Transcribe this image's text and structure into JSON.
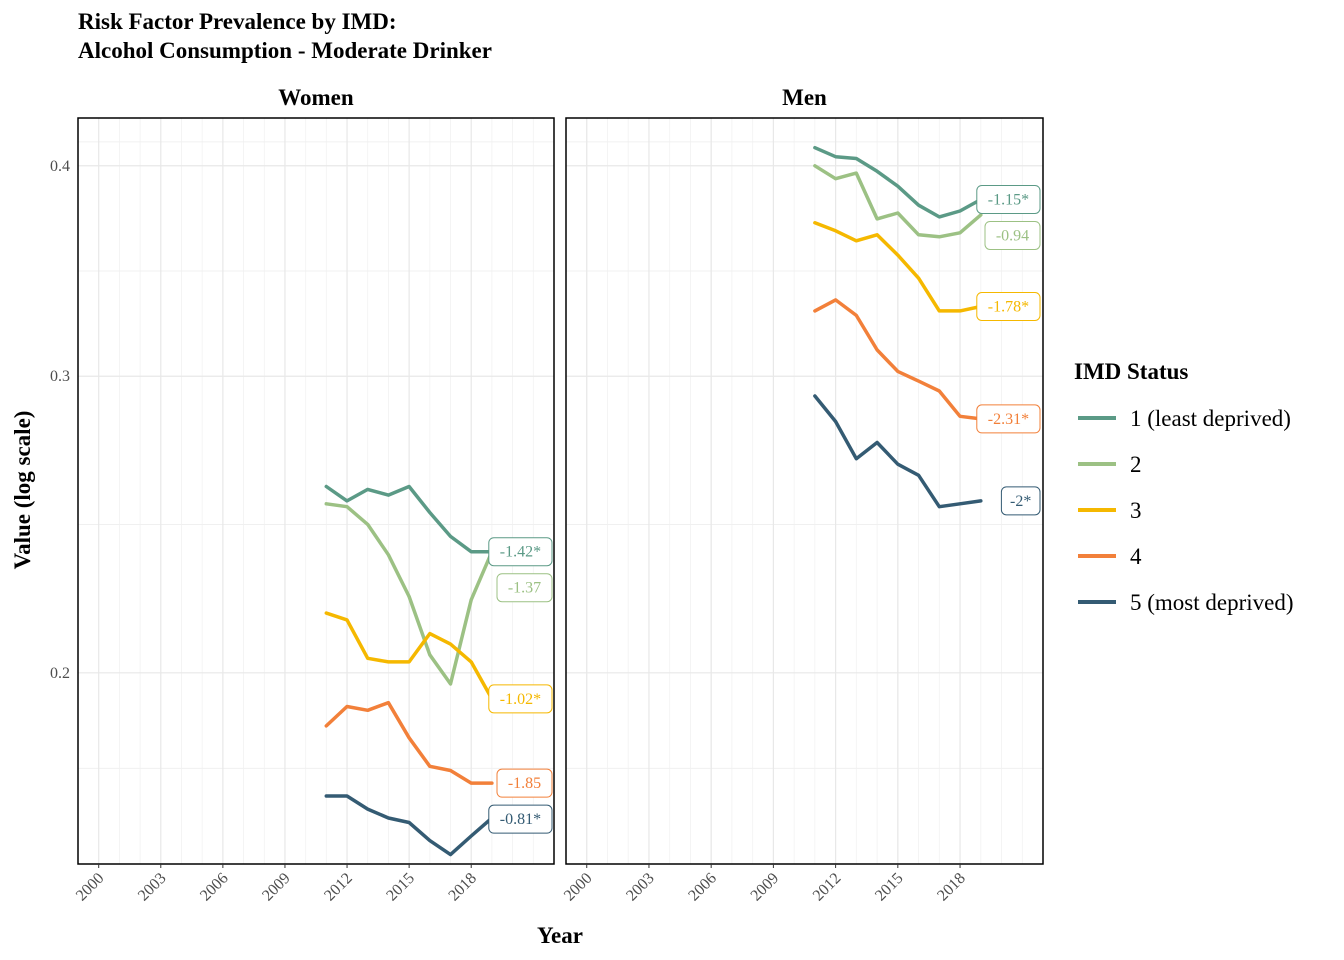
{
  "title_line1": "Risk Factor Prevalence by IMD:",
  "title_line2": "Alcohol Consumption - Moderate Drinker",
  "chart_data": {
    "type": "line",
    "xlabel": "Year",
    "ylabel": "Value (log scale)",
    "y_scale": "log",
    "xlim": [
      1999,
      2022
    ],
    "ylim": [
      0.154,
      0.427
    ],
    "x_ticks": [
      2000,
      2003,
      2006,
      2009,
      2012,
      2015,
      2018
    ],
    "y_ticks": [
      0.2,
      0.3,
      0.4
    ],
    "grid": true,
    "legend_title": "IMD Status",
    "legend_position": "right",
    "panels": [
      {
        "label": "Women",
        "x": [
          2011,
          2012,
          2013,
          2014,
          2015,
          2016,
          2017,
          2018,
          2019
        ],
        "series": [
          {
            "name": "1 (least deprived)",
            "color": "#5b9a86",
            "values": [
              0.258,
              0.253,
              0.257,
              0.255,
              0.258,
              0.249,
              0.241,
              0.236,
              0.236
            ],
            "end_label": "-1.42*"
          },
          {
            "name": "2",
            "color": "#9cc184",
            "values": [
              0.252,
              0.251,
              0.245,
              0.235,
              0.222,
              0.205,
              0.197,
              0.221,
              0.236
            ],
            "end_label": "-1.37"
          },
          {
            "name": "3",
            "color": "#f5b800",
            "values": [
              0.217,
              0.215,
              0.204,
              0.203,
              0.203,
              0.211,
              0.208,
              0.203,
              0.193
            ],
            "end_label": "-1.02*"
          },
          {
            "name": "4",
            "color": "#f2803a",
            "values": [
              0.186,
              0.191,
              0.19,
              0.192,
              0.183,
              0.176,
              0.175,
              0.172,
              0.172
            ],
            "end_label": "-1.85"
          },
          {
            "name": "5 (most deprived)",
            "color": "#345b73",
            "values": [
              0.169,
              0.169,
              0.166,
              0.164,
              0.163,
              0.159,
              0.156,
              0.16,
              0.164
            ],
            "end_label": "-0.81*"
          }
        ]
      },
      {
        "label": "Men",
        "x": [
          2011,
          2012,
          2013,
          2014,
          2015,
          2016,
          2017,
          2018,
          2019
        ],
        "series": [
          {
            "name": "1 (least deprived)",
            "color": "#5b9a86",
            "values": [
              0.41,
              0.405,
              0.404,
              0.397,
              0.389,
              0.379,
              0.373,
              0.376,
              0.382
            ],
            "end_label": "-1.15*"
          },
          {
            "name": "2",
            "color": "#9cc184",
            "values": [
              0.4,
              0.393,
              0.396,
              0.372,
              0.375,
              0.364,
              0.363,
              0.365,
              0.374
            ],
            "end_label": "-0.94"
          },
          {
            "name": "3",
            "color": "#f5b800",
            "values": [
              0.37,
              0.366,
              0.361,
              0.364,
              0.354,
              0.343,
              0.328,
              0.328,
              0.33
            ],
            "end_label": "-1.78*"
          },
          {
            "name": "4",
            "color": "#f2803a",
            "values": [
              0.328,
              0.333,
              0.326,
              0.311,
              0.302,
              0.298,
              0.294,
              0.284,
              0.283
            ],
            "end_label": "-2.31*"
          },
          {
            "name": "5 (most deprived)",
            "color": "#345b73",
            "values": [
              0.292,
              0.282,
              0.268,
              0.274,
              0.266,
              0.262,
              0.251,
              0.252,
              0.253
            ],
            "end_label": "-2*"
          }
        ]
      }
    ]
  }
}
